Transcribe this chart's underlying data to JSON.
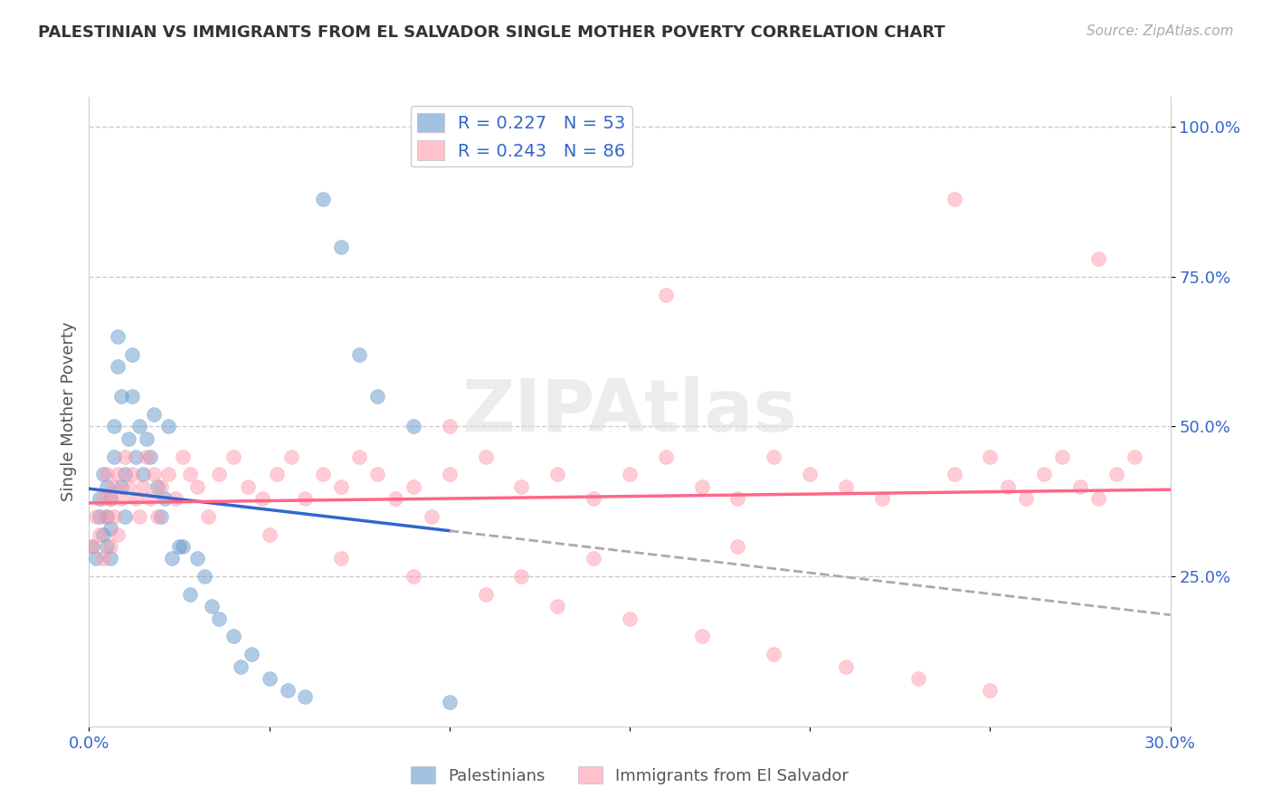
{
  "title": "PALESTINIAN VS IMMIGRANTS FROM EL SALVADOR SINGLE MOTHER POVERTY CORRELATION CHART",
  "source": "Source: ZipAtlas.com",
  "ylabel": "Single Mother Poverty",
  "xlim": [
    0.0,
    0.3
  ],
  "ylim": [
    0.0,
    1.05
  ],
  "xticks": [
    0.0,
    0.05,
    0.1,
    0.15,
    0.2,
    0.25,
    0.3
  ],
  "xticklabels": [
    "0.0%",
    "",
    "",
    "",
    "",
    "",
    "30.0%"
  ],
  "yticks_right": [
    0.25,
    0.5,
    0.75,
    1.0
  ],
  "ytick_labels_right": [
    "25.0%",
    "50.0%",
    "75.0%",
    "100.0%"
  ],
  "blue_color": "#6699CC",
  "pink_color": "#FF99AA",
  "blue_line_color": "#3366CC",
  "pink_line_color": "#FF6688",
  "R_blue": 0.227,
  "N_blue": 53,
  "R_pink": 0.243,
  "N_pink": 86,
  "palestinians_x": [
    0.001,
    0.002,
    0.003,
    0.003,
    0.004,
    0.004,
    0.005,
    0.005,
    0.005,
    0.006,
    0.006,
    0.006,
    0.007,
    0.007,
    0.008,
    0.008,
    0.009,
    0.009,
    0.01,
    0.01,
    0.011,
    0.012,
    0.012,
    0.013,
    0.014,
    0.015,
    0.016,
    0.017,
    0.018,
    0.019,
    0.02,
    0.021,
    0.022,
    0.023,
    0.025,
    0.026,
    0.028,
    0.03,
    0.032,
    0.034,
    0.036,
    0.04,
    0.042,
    0.045,
    0.05,
    0.055,
    0.06,
    0.065,
    0.07,
    0.075,
    0.08,
    0.09,
    0.1
  ],
  "palestinians_y": [
    0.3,
    0.28,
    0.35,
    0.38,
    0.32,
    0.42,
    0.3,
    0.35,
    0.4,
    0.28,
    0.33,
    0.38,
    0.45,
    0.5,
    0.6,
    0.65,
    0.55,
    0.4,
    0.35,
    0.42,
    0.48,
    0.55,
    0.62,
    0.45,
    0.5,
    0.42,
    0.48,
    0.45,
    0.52,
    0.4,
    0.35,
    0.38,
    0.5,
    0.28,
    0.3,
    0.3,
    0.22,
    0.28,
    0.25,
    0.2,
    0.18,
    0.15,
    0.1,
    0.12,
    0.08,
    0.06,
    0.05,
    0.88,
    0.8,
    0.62,
    0.55,
    0.5,
    0.04
  ],
  "salvador_x": [
    0.001,
    0.002,
    0.003,
    0.004,
    0.004,
    0.005,
    0.005,
    0.006,
    0.006,
    0.007,
    0.007,
    0.008,
    0.008,
    0.009,
    0.01,
    0.011,
    0.012,
    0.013,
    0.014,
    0.015,
    0.016,
    0.017,
    0.018,
    0.019,
    0.02,
    0.022,
    0.024,
    0.026,
    0.028,
    0.03,
    0.033,
    0.036,
    0.04,
    0.044,
    0.048,
    0.052,
    0.056,
    0.06,
    0.065,
    0.07,
    0.075,
    0.08,
    0.085,
    0.09,
    0.095,
    0.1,
    0.11,
    0.12,
    0.13,
    0.14,
    0.15,
    0.16,
    0.17,
    0.18,
    0.19,
    0.2,
    0.21,
    0.22,
    0.24,
    0.25,
    0.255,
    0.26,
    0.265,
    0.27,
    0.275,
    0.28,
    0.285,
    0.29,
    0.24,
    0.28,
    0.16,
    0.1,
    0.12,
    0.14,
    0.18,
    0.05,
    0.07,
    0.09,
    0.11,
    0.13,
    0.15,
    0.17,
    0.19,
    0.21,
    0.23,
    0.25
  ],
  "salvador_y": [
    0.3,
    0.35,
    0.32,
    0.38,
    0.28,
    0.42,
    0.35,
    0.3,
    0.38,
    0.4,
    0.35,
    0.42,
    0.32,
    0.38,
    0.45,
    0.4,
    0.42,
    0.38,
    0.35,
    0.4,
    0.45,
    0.38,
    0.42,
    0.35,
    0.4,
    0.42,
    0.38,
    0.45,
    0.42,
    0.4,
    0.35,
    0.42,
    0.45,
    0.4,
    0.38,
    0.42,
    0.45,
    0.38,
    0.42,
    0.4,
    0.45,
    0.42,
    0.38,
    0.4,
    0.35,
    0.42,
    0.45,
    0.4,
    0.42,
    0.38,
    0.42,
    0.45,
    0.4,
    0.38,
    0.45,
    0.42,
    0.4,
    0.38,
    0.42,
    0.45,
    0.4,
    0.38,
    0.42,
    0.45,
    0.4,
    0.38,
    0.42,
    0.45,
    0.88,
    0.78,
    0.72,
    0.5,
    0.25,
    0.28,
    0.3,
    0.32,
    0.28,
    0.25,
    0.22,
    0.2,
    0.18,
    0.15,
    0.12,
    0.1,
    0.08,
    0.06
  ]
}
